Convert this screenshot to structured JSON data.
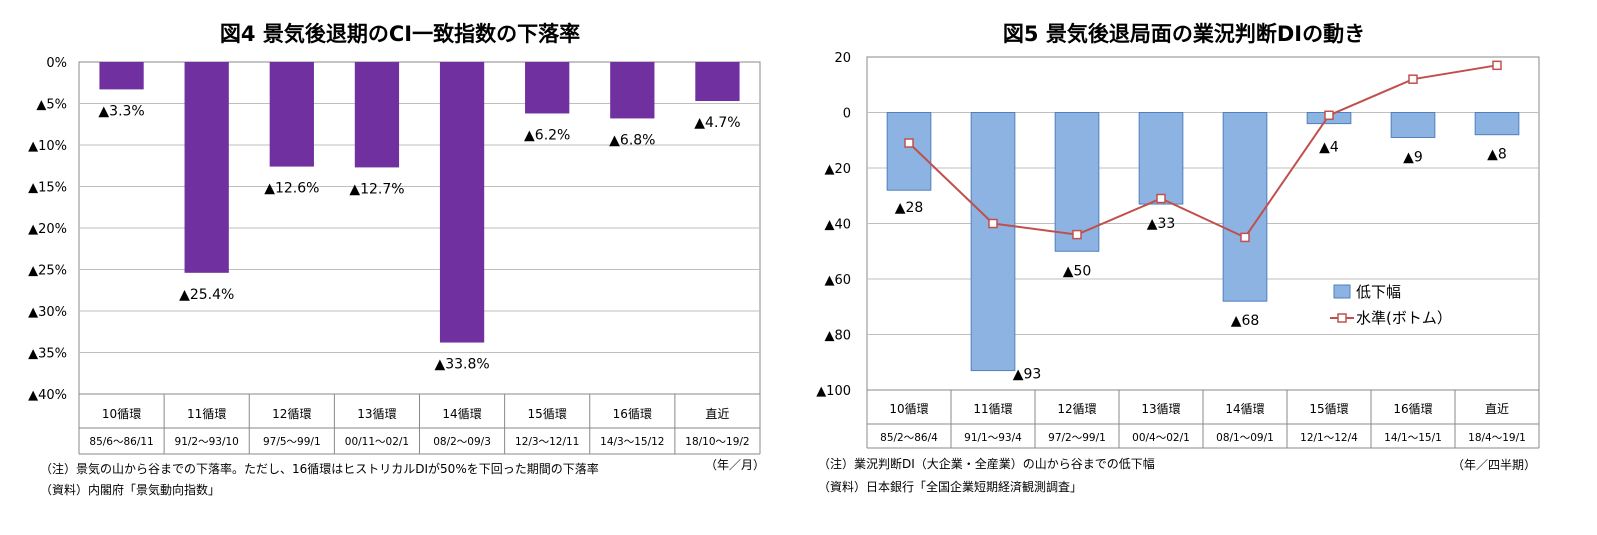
{
  "chart_data": [
    {
      "type": "bar",
      "title": "図4 景気後退期のCI一致指数の下落率",
      "categories": [
        "10循環",
        "11循環",
        "12循環",
        "13循環",
        "14循環",
        "15循環",
        "16循環",
        "直近"
      ],
      "ranges": [
        "85/6〜86/11",
        "91/2〜93/10",
        "97/5〜99/1",
        "00/11〜02/1",
        "08/2〜09/3",
        "12/3〜12/11",
        "14/3〜15/12",
        "18/10〜19/2"
      ],
      "values": [
        -3.3,
        -25.4,
        -12.6,
        -12.7,
        -33.8,
        -6.2,
        -6.8,
        -4.7
      ],
      "data_labels": [
        "▲3.3%",
        "▲25.4%",
        "▲12.6%",
        "▲12.7%",
        "▲33.8%",
        "▲6.2%",
        "▲6.8%",
        "▲4.7%"
      ],
      "ylim": [
        -40,
        0
      ],
      "y_ticks": [
        0,
        -5,
        -10,
        -15,
        -20,
        -25,
        -30,
        -35,
        -40
      ],
      "y_tick_labels": [
        "0%",
        "▲5%",
        "▲10%",
        "▲15%",
        "▲20%",
        "▲25%",
        "▲30%",
        "▲35%",
        "▲40%"
      ],
      "bar_color": "#7030a0",
      "grid": true,
      "unit_note": "（年／月）",
      "notes": [
        "（注）景気の山から谷までの下落率。ただし、16循環はヒストリカルDIが50%を下回った期間の下落率",
        "（資料）内閣府「景気動向指数」"
      ]
    },
    {
      "type": "bar",
      "title": "図5 景気後退局面の業況判断DIの動き",
      "categories": [
        "10循環",
        "11循環",
        "12循環",
        "13循環",
        "14循環",
        "15循環",
        "16循環",
        "直近"
      ],
      "ranges": [
        "85/2〜86/4",
        "91/1〜93/4",
        "97/2〜99/1",
        "00/4〜02/1",
        "08/1〜09/1",
        "12/1〜12/4",
        "14/1〜15/1",
        "18/4〜19/1"
      ],
      "series": [
        {
          "name": "低下幅",
          "type": "bar",
          "values": [
            -28,
            -93,
            -50,
            -33,
            -68,
            -4,
            -9,
            -8
          ],
          "data_labels": [
            "▲28",
            "▲93",
            "▲50",
            "▲33",
            "▲68",
            "▲4",
            "▲9",
            "▲8"
          ],
          "color": "#8db3e2"
        },
        {
          "name": "水準(ボトム）",
          "type": "line",
          "values": [
            -11,
            -40,
            -44,
            -31,
            -45,
            -1,
            12,
            17
          ],
          "color": "#c0504d"
        }
      ],
      "ylim": [
        -100,
        20
      ],
      "y_ticks": [
        20,
        0,
        -20,
        -40,
        -60,
        -80,
        -100
      ],
      "y_tick_labels": [
        "20",
        "0",
        "▲20",
        "▲40",
        "▲60",
        "▲80",
        "▲100"
      ],
      "grid": true,
      "legend_position": "bottom-right",
      "unit_note": "（年／四半期）",
      "notes": [
        "（注）業況判断DI（大企業・全産業）の山から谷までの低下幅",
        "（資料）日本銀行「全国企業短期経済観測調査」"
      ]
    }
  ]
}
